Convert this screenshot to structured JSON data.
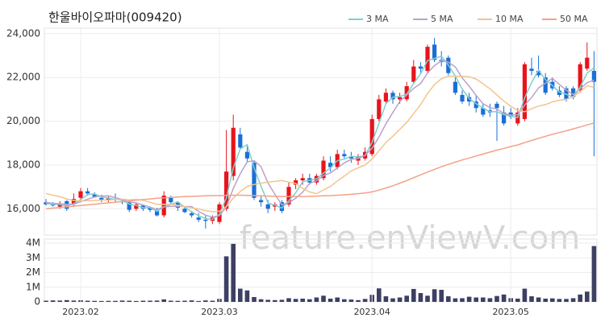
{
  "watermark": "feature.enViewV.com",
  "chart_data": [
    {
      "type": "candlestick",
      "title": "한울바이오파마(009420)",
      "up_color": "#e8141c",
      "down_color": "#1a6fd6",
      "legend": "top-right",
      "grid": true,
      "ylim": [
        14800,
        24250
      ],
      "yticks": [
        {
          "value": 16000,
          "label": "16,000"
        },
        {
          "value": 18000,
          "label": "18,000"
        },
        {
          "value": 20000,
          "label": "20,000"
        },
        {
          "value": 22000,
          "label": "22,000"
        },
        {
          "value": 24000,
          "label": "24,000"
        }
      ],
      "open": [
        16300,
        16200,
        16100,
        16350,
        16200,
        16500,
        16800,
        16650,
        16500,
        16400,
        16450,
        16350,
        16300,
        16000,
        16150,
        16050,
        15900,
        15700,
        16500,
        16300,
        16000,
        15800,
        15600,
        15500,
        15450,
        15400,
        16000,
        17500,
        19400,
        18600,
        18100,
        16400,
        16200,
        16100,
        16300,
        16200,
        17100,
        17300,
        17400,
        17200,
        17400,
        18100,
        17900,
        18500,
        18400,
        18200,
        18300,
        18500,
        20100,
        20900,
        21300,
        21000,
        21000,
        21800,
        22500,
        22300,
        23500,
        22800,
        22900,
        21800,
        21200,
        21100,
        20900,
        20600,
        20500,
        20800,
        20400,
        20400,
        19900,
        20100,
        22400,
        22300,
        22000,
        21800,
        21400,
        21500,
        21500,
        21400,
        22400,
        22300
      ],
      "high": [
        16450,
        16300,
        16350,
        16400,
        16700,
        16950,
        16950,
        16750,
        16650,
        16600,
        16700,
        16450,
        16350,
        16300,
        16200,
        16100,
        16050,
        16800,
        16600,
        16350,
        16100,
        15900,
        15800,
        15700,
        15700,
        16300,
        19600,
        20300,
        19700,
        18900,
        18200,
        16600,
        16400,
        16300,
        16400,
        17200,
        17400,
        17600,
        17600,
        17600,
        18400,
        18400,
        18700,
        18700,
        18600,
        18500,
        18800,
        20300,
        21200,
        21500,
        21400,
        21300,
        21800,
        22800,
        22700,
        23500,
        23800,
        23200,
        23000,
        22000,
        21400,
        21300,
        21200,
        20800,
        20800,
        20900,
        20700,
        20600,
        20600,
        22700,
        22900,
        23000,
        22200,
        22000,
        21600,
        21600,
        21600,
        22700,
        23600,
        23200
      ],
      "low": [
        16150,
        16100,
        16000,
        15900,
        16100,
        16300,
        16600,
        16500,
        16300,
        16300,
        16300,
        16200,
        15850,
        15900,
        15900,
        15850,
        15650,
        15600,
        16200,
        15900,
        15800,
        15600,
        15400,
        15100,
        15300,
        15300,
        15900,
        17300,
        18700,
        18100,
        16400,
        16100,
        15800,
        15900,
        15800,
        16100,
        16900,
        17100,
        17100,
        17100,
        17300,
        17700,
        17800,
        18300,
        18100,
        18000,
        18200,
        18400,
        20000,
        20800,
        20800,
        20800,
        20900,
        21700,
        22200,
        22200,
        22700,
        22500,
        22100,
        21200,
        20800,
        20700,
        20400,
        20200,
        20200,
        19100,
        19800,
        20100,
        19800,
        20000,
        22100,
        22000,
        21200,
        21400,
        21100,
        20900,
        21000,
        21300,
        22300,
        18400
      ],
      "close": [
        16200,
        16150,
        16250,
        16000,
        16450,
        16800,
        16700,
        16550,
        16400,
        16500,
        16400,
        16300,
        15950,
        16200,
        16000,
        15950,
        15700,
        16600,
        16300,
        16050,
        15850,
        15700,
        15500,
        15450,
        15600,
        16200,
        17700,
        19700,
        18800,
        18300,
        16500,
        16300,
        16000,
        16200,
        15900,
        17000,
        17300,
        17400,
        17200,
        17500,
        18200,
        17900,
        18500,
        18400,
        18300,
        18400,
        18600,
        20100,
        21000,
        21300,
        21000,
        21100,
        21600,
        22500,
        22400,
        23400,
        22800,
        22700,
        22200,
        21300,
        20900,
        20900,
        20600,
        20300,
        20400,
        20600,
        19900,
        20200,
        20400,
        22600,
        22300,
        22100,
        21300,
        21500,
        21200,
        21000,
        21100,
        22600,
        22900,
        21800
      ],
      "series": [
        {
          "name": "3 MA",
          "color": "#7fcfd0",
          "values": [
            16250,
            16200,
            16200,
            16133,
            16233,
            16417,
            16650,
            16683,
            16550,
            16483,
            16433,
            16400,
            16217,
            16150,
            16050,
            16050,
            15883,
            16083,
            16200,
            16317,
            16067,
            15867,
            15683,
            15550,
            15517,
            15750,
            16500,
            17867,
            18733,
            18933,
            17867,
            17033,
            16267,
            16167,
            16033,
            16367,
            16733,
            17233,
            17300,
            17367,
            17633,
            17867,
            18200,
            18267,
            18400,
            18367,
            18433,
            19033,
            19900,
            20800,
            21100,
            21133,
            21233,
            21733,
            22167,
            22767,
            22867,
            22967,
            22567,
            22067,
            21467,
            21033,
            20800,
            20600,
            20433,
            20433,
            20300,
            20233,
            20167,
            21067,
            21767,
            22333,
            21900,
            21633,
            21333,
            21233,
            21100,
            21567,
            22200,
            22433
          ]
        },
        {
          "name": "5 MA",
          "color": "#b9a3cb",
          "values": [
            16300,
            16250,
            16230,
            16200,
            16210,
            16330,
            16440,
            16540,
            16580,
            16590,
            16510,
            16430,
            16310,
            16270,
            16170,
            16080,
            15960,
            16090,
            16110,
            16120,
            16100,
            16100,
            15880,
            15710,
            15620,
            15690,
            16090,
            16930,
            17600,
            18140,
            18200,
            17920,
            17180,
            16660,
            16180,
            16280,
            16480,
            16760,
            17160,
            17280,
            17520,
            17640,
            17860,
            18100,
            18260,
            18300,
            18440,
            18760,
            19280,
            19880,
            20400,
            20900,
            21200,
            21500,
            21720,
            22200,
            22540,
            22760,
            22700,
            22480,
            21980,
            21600,
            21180,
            20800,
            20620,
            20560,
            20360,
            20280,
            20300,
            20740,
            21080,
            21520,
            21740,
            21960,
            21680,
            21420,
            21220,
            21480,
            21760,
            21880
          ]
        },
        {
          "name": "10 MA",
          "color": "#f2c58e",
          "values": [
            16700,
            16620,
            16550,
            16450,
            16380,
            16350,
            16370,
            16380,
            16400,
            16400,
            16420,
            16440,
            16410,
            16430,
            16390,
            16300,
            16200,
            16210,
            16200,
            16160,
            16100,
            16040,
            15990,
            15910,
            15870,
            15890,
            16090,
            16490,
            16790,
            17020,
            17110,
            17170,
            17220,
            17250,
            17290,
            17220,
            17160,
            16930,
            16770,
            16690,
            16860,
            17020,
            17270,
            17490,
            17730,
            17870,
            18000,
            18270,
            18650,
            19030,
            19310,
            19630,
            19940,
            20350,
            20760,
            21260,
            21680,
            21940,
            22060,
            22060,
            22050,
            22030,
            21930,
            21710,
            21480,
            21200,
            20920,
            20680,
            20500,
            20430,
            20570,
            20690,
            20760,
            20880,
            20960,
            21000,
            21120,
            21360,
            21610,
            21550
          ]
        },
        {
          "name": "50 MA",
          "color": "#f4a189",
          "values": [
            16000,
            16030,
            16060,
            16090,
            16120,
            16150,
            16180,
            16210,
            16240,
            16270,
            16300,
            16330,
            16360,
            16390,
            16420,
            16450,
            16480,
            16500,
            16520,
            16540,
            16560,
            16570,
            16580,
            16590,
            16600,
            16600,
            16610,
            16620,
            16620,
            16610,
            16600,
            16590,
            16580,
            16570,
            16560,
            16560,
            16560,
            16560,
            16570,
            16580,
            16590,
            16600,
            16620,
            16640,
            16660,
            16690,
            16720,
            16770,
            16850,
            16950,
            17050,
            17170,
            17290,
            17420,
            17550,
            17680,
            17800,
            17920,
            18030,
            18130,
            18230,
            18320,
            18410,
            18500,
            18590,
            18680,
            18760,
            18840,
            18920,
            19020,
            19120,
            19220,
            19310,
            19400,
            19480,
            19560,
            19650,
            19740,
            19830,
            19920
          ]
        }
      ]
    },
    {
      "type": "bar",
      "color": "#3d3f63",
      "grid": true,
      "categories": [
        null,
        null,
        null,
        null,
        null,
        "2023.02",
        null,
        null,
        null,
        null,
        null,
        null,
        null,
        null,
        null,
        null,
        null,
        null,
        null,
        null,
        null,
        null,
        null,
        null,
        null,
        "2023.03",
        null,
        null,
        null,
        null,
        null,
        null,
        null,
        null,
        null,
        null,
        null,
        null,
        null,
        null,
        null,
        null,
        null,
        null,
        null,
        null,
        null,
        "2023.04",
        null,
        null,
        null,
        null,
        null,
        null,
        null,
        null,
        null,
        null,
        null,
        null,
        null,
        null,
        null,
        null,
        null,
        null,
        null,
        "2023.05",
        null,
        null,
        null,
        null,
        null,
        null,
        null,
        null,
        null,
        null,
        null,
        null
      ],
      "ylim": [
        0,
        4000000
      ],
      "yticks": [
        0,
        {
          "value": 1000000,
          "label": "1M"
        },
        {
          "value": 2000000,
          "label": "2M"
        },
        {
          "value": 3000000,
          "label": "3M"
        },
        {
          "value": 4000000,
          "label": "4M"
        }
      ],
      "values": [
        80000,
        100000,
        90000,
        120000,
        90000,
        110000,
        80000,
        70000,
        60000,
        70000,
        70000,
        90000,
        80000,
        60000,
        80000,
        80000,
        90000,
        170000,
        80000,
        70000,
        80000,
        100000,
        60000,
        100000,
        80000,
        200000,
        3100000,
        3950000,
        900000,
        780000,
        330000,
        180000,
        140000,
        120000,
        140000,
        250000,
        200000,
        220000,
        180000,
        300000,
        420000,
        220000,
        300000,
        180000,
        160000,
        120000,
        200000,
        480000,
        920000,
        380000,
        240000,
        300000,
        420000,
        880000,
        600000,
        420000,
        860000,
        820000,
        380000,
        240000,
        250000,
        350000,
        300000,
        300000,
        250000,
        400000,
        500000,
        250000,
        220000,
        900000,
        380000,
        300000,
        220000,
        240000,
        200000,
        200000,
        250000,
        500000,
        700000,
        3800000
      ]
    }
  ]
}
